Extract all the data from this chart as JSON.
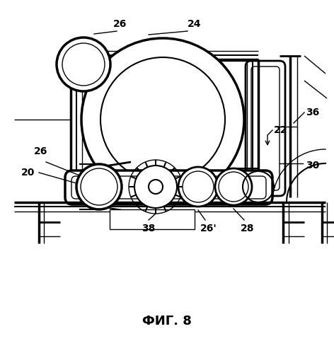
{
  "title": "ФИГ. 8",
  "bg_color": "#ffffff",
  "line_color": "#000000",
  "fig_width": 4.72,
  "fig_height": 4.99,
  "dpi": 100
}
